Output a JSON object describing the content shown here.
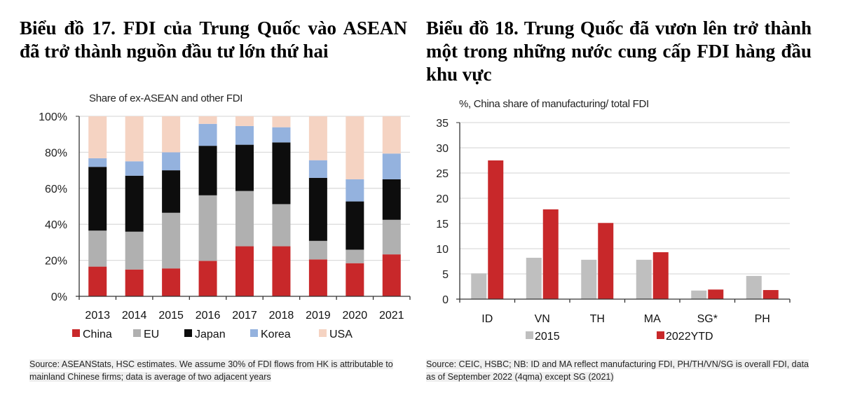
{
  "left": {
    "heading": "Biểu đồ 17. FDI của Trung Quốc vào ASEAN đã trở thành nguồn đầu tư lớn thứ hai",
    "subtitle": "Share of ex-ASEAN and other FDI",
    "source": "Source: ASEANStats, HSC estimates. We assume 30% of FDI flows from HK is attributable to mainland Chinese firms; data is average of two adjacent years"
  },
  "right": {
    "heading": "Biểu đồ 18. Trung Quốc đã vươn lên trở thành một trong những nước cung cấp FDI hàng đầu khu vực",
    "subtitle": "%, China share of manufacturing/  total  FDI",
    "source": "Source: CEIC, HSBC; NB: ID and MA reflect manufacturing FDI, PH/TH/VN/SG is overall FDI, data as of September 2022 (4qma) except SG (2021)"
  },
  "chart_data": [
    {
      "type": "bar",
      "stacked": true,
      "title": "Share of ex-ASEAN and other FDI",
      "xlabel": "",
      "ylabel": "",
      "ylim": [
        0,
        100
      ],
      "yticks": [
        "0%",
        "20%",
        "40%",
        "60%",
        "80%",
        "100%"
      ],
      "grid": true,
      "legend_position": "bottom",
      "categories": [
        "2013",
        "2014",
        "2015",
        "2016",
        "2017",
        "2018",
        "2019",
        "2020",
        "2021"
      ],
      "series": [
        {
          "name": "China",
          "color": "#c8282a",
          "values": [
            16.5,
            14.9,
            15.5,
            19.7,
            27.8,
            27.8,
            20.5,
            18.4,
            23.3
          ]
        },
        {
          "name": "EU",
          "color": "#b0b0b0",
          "values": [
            20.0,
            21.0,
            30.9,
            36.4,
            30.7,
            23.4,
            10.3,
            7.5,
            19.2
          ]
        },
        {
          "name": "Japan",
          "color": "#0d0d0d",
          "values": [
            35.4,
            31.1,
            23.6,
            27.5,
            25.7,
            34.3,
            35.0,
            26.8,
            22.5
          ]
        },
        {
          "name": "Korea",
          "color": "#94b2de",
          "values": [
            4.8,
            8.0,
            10.0,
            12.2,
            10.4,
            8.4,
            9.8,
            12.3,
            14.3
          ]
        },
        {
          "name": "USA",
          "color": "#f5d3c2",
          "values": [
            23.3,
            25.0,
            20.0,
            4.2,
            5.4,
            6.1,
            24.4,
            35.0,
            20.7
          ]
        }
      ]
    },
    {
      "type": "bar",
      "stacked": false,
      "title": "%, China share of manufacturing/  total  FDI",
      "xlabel": "",
      "ylabel": "",
      "ylim": [
        0,
        35
      ],
      "yticks": [
        "0",
        "5",
        "10",
        "15",
        "20",
        "25",
        "30",
        "35"
      ],
      "grid": true,
      "legend_position": "bottom",
      "categories": [
        "ID",
        "VN",
        "TH",
        "MA",
        "SG*",
        "PH"
      ],
      "series": [
        {
          "name": "2015",
          "color": "#bfbfbf",
          "values": [
            5.1,
            8.2,
            7.8,
            7.8,
            1.7,
            4.6
          ]
        },
        {
          "name": "2022YTD",
          "color": "#c8282a",
          "values": [
            27.5,
            17.8,
            15.1,
            9.3,
            1.9,
            1.8
          ]
        }
      ]
    }
  ]
}
